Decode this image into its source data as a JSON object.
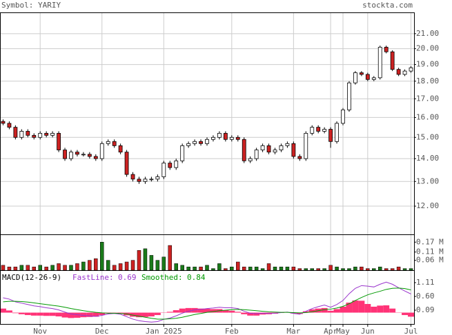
{
  "header": {
    "symbol": "Symbol: YARIY",
    "site": "stockta.com"
  },
  "chart_data": [
    {
      "type": "candlestick",
      "categories": [
        null,
        null,
        null,
        null,
        null,
        null,
        "Nov",
        null,
        null,
        null,
        null,
        null,
        null,
        null,
        null,
        null,
        "Dec",
        null,
        null,
        null,
        null,
        null,
        null,
        null,
        null,
        null,
        "Jan 2025",
        null,
        null,
        null,
        null,
        null,
        null,
        null,
        null,
        null,
        null,
        "Feb",
        null,
        null,
        null,
        null,
        null,
        null,
        null,
        null,
        null,
        "Mar",
        null,
        null,
        null,
        null,
        null,
        "Apr",
        null,
        "May",
        null,
        null,
        null,
        "Jun",
        null,
        null,
        null,
        null,
        null,
        null,
        "Jul"
      ],
      "open": [
        15.8,
        15.7,
        15.5,
        15.0,
        15.3,
        15.1,
        15.0,
        15.2,
        15.1,
        15.2,
        14.4,
        14.0,
        14.3,
        14.2,
        14.2,
        14.1,
        14.0,
        14.7,
        14.8,
        14.6,
        14.3,
        13.3,
        13.1,
        13.0,
        13.1,
        13.1,
        13.2,
        13.8,
        13.6,
        13.9,
        14.6,
        14.7,
        14.8,
        14.7,
        14.9,
        15.0,
        15.2,
        14.9,
        15.0,
        14.9,
        13.9,
        14.0,
        14.4,
        14.6,
        14.3,
        14.4,
        14.6,
        14.7,
        14.1,
        14.0,
        15.2,
        15.5,
        15.3,
        15.4,
        14.8,
        15.7,
        16.4,
        17.9,
        18.5,
        18.4,
        18.1,
        18.2,
        20.1,
        19.8,
        18.7,
        18.4,
        18.6
      ],
      "high": [
        15.9,
        15.8,
        15.6,
        15.4,
        15.4,
        15.2,
        15.3,
        15.3,
        15.3,
        15.3,
        14.5,
        14.4,
        14.4,
        14.3,
        14.3,
        14.2,
        14.8,
        14.9,
        14.9,
        14.7,
        14.4,
        13.4,
        13.2,
        13.2,
        13.2,
        13.3,
        13.9,
        13.9,
        14.0,
        14.7,
        14.8,
        14.9,
        14.9,
        15.0,
        15.1,
        15.3,
        15.3,
        15.1,
        15.1,
        15.0,
        14.1,
        14.5,
        14.7,
        14.7,
        14.5,
        14.7,
        14.8,
        14.8,
        14.2,
        15.3,
        15.6,
        15.6,
        15.5,
        15.5,
        15.8,
        16.5,
        18.0,
        18.6,
        18.6,
        18.5,
        18.3,
        20.2,
        20.2,
        19.9,
        18.8,
        18.7,
        18.9
      ],
      "low": [
        15.6,
        15.4,
        14.9,
        14.9,
        15.0,
        14.9,
        14.9,
        15.0,
        15.0,
        14.3,
        13.9,
        13.9,
        14.1,
        14.1,
        14.0,
        13.9,
        13.9,
        14.6,
        14.5,
        14.2,
        13.2,
        13.0,
        12.9,
        12.9,
        13.0,
        13.0,
        13.1,
        13.5,
        13.5,
        13.8,
        14.5,
        14.6,
        14.6,
        14.6,
        14.8,
        14.9,
        14.8,
        14.8,
        14.8,
        13.8,
        13.8,
        13.9,
        14.3,
        14.2,
        14.2,
        14.3,
        14.5,
        14.0,
        13.9,
        13.9,
        15.1,
        15.2,
        15.2,
        14.5,
        14.7,
        15.6,
        16.3,
        17.8,
        18.3,
        18.0,
        18.0,
        18.1,
        19.7,
        18.6,
        18.3,
        18.3,
        18.5
      ],
      "close": [
        15.7,
        15.5,
        15.0,
        15.3,
        15.1,
        15.0,
        15.2,
        15.1,
        15.2,
        14.4,
        14.0,
        14.3,
        14.2,
        14.2,
        14.1,
        14.0,
        14.7,
        14.8,
        14.6,
        14.3,
        13.3,
        13.1,
        13.0,
        13.1,
        13.1,
        13.2,
        13.8,
        13.6,
        13.9,
        14.6,
        14.7,
        14.8,
        14.7,
        14.9,
        15.0,
        15.2,
        14.9,
        15.0,
        14.9,
        13.9,
        14.0,
        14.4,
        14.6,
        14.3,
        14.4,
        14.6,
        14.7,
        14.1,
        14.0,
        15.2,
        15.5,
        15.3,
        15.4,
        14.8,
        15.7,
        16.4,
        17.9,
        18.5,
        18.4,
        18.1,
        18.2,
        20.1,
        19.8,
        18.7,
        18.4,
        18.6,
        18.8
      ],
      "ylim": [
        10.95,
        22.5
      ],
      "log_scale": true,
      "grid": true,
      "yticks": [
        {
          "value": 12,
          "label": "12.00"
        },
        {
          "value": 13,
          "label": "13.00"
        },
        {
          "value": 14,
          "label": "14.00"
        },
        {
          "value": 15,
          "label": "15.00"
        },
        {
          "value": 16,
          "label": "16.00"
        },
        {
          "value": 17,
          "label": "17.00"
        },
        {
          "value": 18,
          "label": "18.00"
        },
        {
          "value": 19,
          "label": "19.00"
        },
        {
          "value": 20,
          "label": "20.00"
        },
        {
          "value": 21,
          "label": "21.00"
        }
      ],
      "up_color": "#ffffff",
      "down_color": "#cc2222"
    },
    {
      "type": "bar",
      "values": [
        0.03,
        0.02,
        0.02,
        0.03,
        0.03,
        0.02,
        0.03,
        0.02,
        0.03,
        0.04,
        0.03,
        0.03,
        0.04,
        0.05,
        0.06,
        0.07,
        0.17,
        0.06,
        0.03,
        0.04,
        0.05,
        0.06,
        0.12,
        0.13,
        0.09,
        0.06,
        0.08,
        0.15,
        0.04,
        0.03,
        0.02,
        0.02,
        0.02,
        0.03,
        0.01,
        0.04,
        0.01,
        0.02,
        0.05,
        0.02,
        0.02,
        0.02,
        0.01,
        0.04,
        0.02,
        0.02,
        0.02,
        0.02,
        0.01,
        0.01,
        0.01,
        0.01,
        0.01,
        0.03,
        0.02,
        0.01,
        0.01,
        0.02,
        0.02,
        0.01,
        0.01,
        0.02,
        0.01,
        0.01,
        0.02,
        0.01,
        0.01
      ],
      "ylim": [
        0,
        0.217
      ],
      "yticks": [
        {
          "value": 0.06,
          "label": "0.06 M"
        },
        {
          "value": 0.11,
          "label": "0.11 M"
        },
        {
          "value": 0.17,
          "label": "0.17 M"
        }
      ],
      "up_color": "#1a7a1a",
      "down_color": "#cc2222"
    },
    {
      "type": "line",
      "title": "MACD(12-26-9)",
      "series": [
        {
          "name": "FastLine:",
          "color": "#9933cc",
          "values": [
            0.55,
            0.5,
            0.4,
            0.35,
            0.3,
            0.25,
            0.22,
            0.18,
            0.15,
            0.1,
            0.02,
            -0.05,
            -0.08,
            -0.1,
            -0.12,
            -0.14,
            -0.1,
            -0.05,
            -0.03,
            -0.06,
            -0.15,
            -0.24,
            -0.3,
            -0.33,
            -0.35,
            -0.33,
            -0.25,
            -0.2,
            -0.12,
            -0.02,
            0.05,
            0.1,
            0.12,
            0.15,
            0.17,
            0.2,
            0.18,
            0.18,
            0.15,
            0.05,
            -0.02,
            -0.04,
            -0.02,
            -0.03,
            -0.02,
            0.0,
            0.02,
            -0.03,
            -0.06,
            0.05,
            0.15,
            0.22,
            0.28,
            0.2,
            0.3,
            0.45,
            0.7,
            0.9,
            1.0,
            0.98,
            0.95,
            1.05,
            1.13,
            1.05,
            0.92,
            0.8,
            0.69
          ]
        },
        {
          "name": "Smoothed:",
          "color": "#009900",
          "values": [
            0.4,
            0.42,
            0.42,
            0.41,
            0.39,
            0.36,
            0.33,
            0.3,
            0.27,
            0.24,
            0.2,
            0.15,
            0.11,
            0.07,
            0.04,
            0.01,
            -0.01,
            -0.02,
            -0.02,
            -0.03,
            -0.05,
            -0.09,
            -0.13,
            -0.17,
            -0.21,
            -0.24,
            -0.24,
            -0.23,
            -0.21,
            -0.17,
            -0.12,
            -0.07,
            -0.03,
            0.01,
            0.04,
            0.07,
            0.09,
            0.11,
            0.12,
            0.11,
            0.09,
            0.07,
            0.05,
            0.03,
            0.02,
            0.01,
            0.01,
            0.0,
            -0.01,
            0.0,
            0.03,
            0.07,
            0.11,
            0.13,
            0.17,
            0.23,
            0.33,
            0.45,
            0.56,
            0.66,
            0.73,
            0.79,
            0.86,
            0.9,
            0.91,
            0.89,
            0.84
          ]
        }
      ],
      "histogram": {
        "color": "#ff3377",
        "values": [
          0.15,
          0.08,
          -0.02,
          -0.06,
          -0.09,
          -0.11,
          -0.11,
          -0.12,
          -0.12,
          -0.14,
          -0.18,
          -0.2,
          -0.19,
          -0.17,
          -0.16,
          -0.15,
          -0.09,
          -0.03,
          -0.01,
          -0.03,
          -0.1,
          -0.15,
          -0.17,
          -0.16,
          -0.14,
          -0.09,
          -0.01,
          0.03,
          0.09,
          0.15,
          0.17,
          0.17,
          0.15,
          0.14,
          0.13,
          0.13,
          0.09,
          0.07,
          0.03,
          -0.06,
          -0.11,
          -0.11,
          -0.07,
          -0.06,
          -0.04,
          -0.01,
          0.01,
          -0.03,
          -0.05,
          0.05,
          0.12,
          0.15,
          0.17,
          0.07,
          0.13,
          0.22,
          0.37,
          0.45,
          0.44,
          0.32,
          0.22,
          0.26,
          0.27,
          0.15,
          0.01,
          -0.09,
          -0.15
        ]
      },
      "ylim": [
        -0.42,
        1.57
      ],
      "yticks": [
        0.09,
        {
          "value": 0.6,
          "label": "0.60"
        },
        1.11
      ]
    }
  ]
}
